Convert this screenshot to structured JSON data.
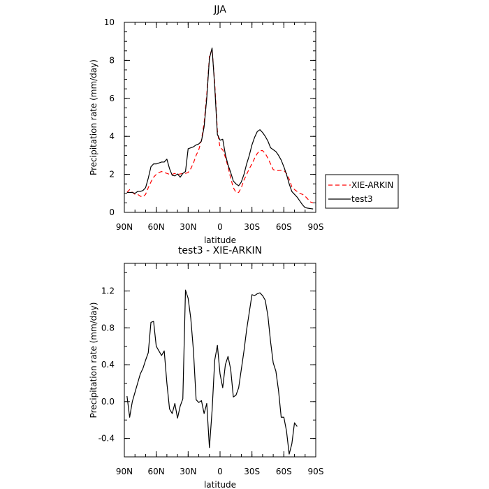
{
  "chart_data": [
    {
      "type": "line",
      "title": "JJA",
      "xlabel": "latitude",
      "ylabel": "Precipitation rate (mm/day)",
      "xlim": [
        -90,
        90
      ],
      "ylim": [
        0,
        10
      ],
      "xticks": [
        {
          "value": -90,
          "label": "90N"
        },
        {
          "value": -60,
          "label": "60N"
        },
        {
          "value": -30,
          "label": "30N"
        },
        {
          "value": 0,
          "label": "0"
        },
        {
          "value": 30,
          "label": "30S"
        },
        {
          "value": 60,
          "label": "60S"
        },
        {
          "value": 90,
          "label": "90S"
        }
      ],
      "yticks": [
        {
          "value": 0,
          "label": "0"
        },
        {
          "value": 2,
          "label": "2"
        },
        {
          "value": 4,
          "label": "4"
        },
        {
          "value": 6,
          "label": "6"
        },
        {
          "value": 8,
          "label": "8"
        },
        {
          "value": 10,
          "label": "10"
        }
      ],
      "legend_position": "right",
      "series": [
        {
          "name": "XIE-ARKIN",
          "color": "#ff0000",
          "dash": "dashed",
          "points": [
            [
              -87.5,
              1.05
            ],
            [
              -85,
              1.2
            ],
            [
              -82.5,
              1.05
            ],
            [
              -80,
              0.95
            ],
            [
              -77.5,
              0.95
            ],
            [
              -75,
              0.85
            ],
            [
              -72.5,
              0.82
            ],
            [
              -70,
              0.95
            ],
            [
              -67.5,
              1.3
            ],
            [
              -65,
              1.6
            ],
            [
              -62.5,
              1.85
            ],
            [
              -60,
              2.0
            ],
            [
              -57.5,
              2.1
            ],
            [
              -55,
              2.15
            ],
            [
              -52.5,
              2.1
            ],
            [
              -50,
              2.05
            ],
            [
              -47.5,
              2.0
            ],
            [
              -45,
              2.0
            ],
            [
              -42.5,
              2.05
            ],
            [
              -40,
              2.0
            ],
            [
              -37.5,
              2.02
            ],
            [
              -35,
              2.05
            ],
            [
              -32.5,
              2.05
            ],
            [
              -30,
              2.1
            ],
            [
              -27.5,
              2.3
            ],
            [
              -25,
              2.6
            ],
            [
              -22.5,
              3.0
            ],
            [
              -20,
              3.3
            ],
            [
              -17.5,
              3.8
            ],
            [
              -15,
              4.7
            ],
            [
              -12.5,
              6.2
            ],
            [
              -10,
              8.2
            ],
            [
              -7.5,
              8.6
            ],
            [
              -5,
              6.8
            ],
            [
              -2.5,
              4.3
            ],
            [
              0,
              3.4
            ],
            [
              2.5,
              3.3
            ],
            [
              5,
              2.9
            ],
            [
              7.5,
              2.4
            ],
            [
              10,
              1.8
            ],
            [
              12.5,
              1.3
            ],
            [
              15,
              1.05
            ],
            [
              17.5,
              1.05
            ],
            [
              20,
              1.3
            ],
            [
              22.5,
              1.7
            ],
            [
              25,
              2.0
            ],
            [
              27.5,
              2.3
            ],
            [
              30,
              2.55
            ],
            [
              32.5,
              2.85
            ],
            [
              35,
              3.1
            ],
            [
              37.5,
              3.25
            ],
            [
              40,
              3.25
            ],
            [
              42.5,
              3.1
            ],
            [
              45,
              2.85
            ],
            [
              47.5,
              2.55
            ],
            [
              50,
              2.25
            ],
            [
              52.5,
              2.2
            ],
            [
              55,
              2.2
            ],
            [
              57.5,
              2.22
            ],
            [
              60,
              2.2
            ],
            [
              62.5,
              2.05
            ],
            [
              65,
              1.75
            ],
            [
              67.5,
              1.35
            ],
            [
              70,
              1.2
            ],
            [
              72.5,
              1.1
            ],
            [
              75,
              1.0
            ],
            [
              77.5,
              0.95
            ],
            [
              80,
              0.85
            ],
            [
              82.5,
              0.7
            ],
            [
              85,
              0.55
            ],
            [
              87.5,
              0.5
            ]
          ]
        },
        {
          "name": "test3",
          "color": "#000000",
          "dash": "solid",
          "points": [
            [
              -87.5,
              1.05
            ],
            [
              -85,
              1.05
            ],
            [
              -82.5,
              1.05
            ],
            [
              -80,
              1.0
            ],
            [
              -77.5,
              1.1
            ],
            [
              -75,
              1.1
            ],
            [
              -72.5,
              1.15
            ],
            [
              -70,
              1.3
            ],
            [
              -67.5,
              1.8
            ],
            [
              -65,
              2.4
            ],
            [
              -62.5,
              2.55
            ],
            [
              -60,
              2.55
            ],
            [
              -57.5,
              2.6
            ],
            [
              -55,
              2.65
            ],
            [
              -52.5,
              2.65
            ],
            [
              -50,
              2.8
            ],
            [
              -47.5,
              2.3
            ],
            [
              -45,
              1.95
            ],
            [
              -42.5,
              1.92
            ],
            [
              -40,
              2.02
            ],
            [
              -37.5,
              1.85
            ],
            [
              -35,
              2.05
            ],
            [
              -32.5,
              2.15
            ],
            [
              -30,
              3.35
            ],
            [
              -27.5,
              3.4
            ],
            [
              -25,
              3.45
            ],
            [
              -22.5,
              3.55
            ],
            [
              -20,
              3.6
            ],
            [
              -17.5,
              3.75
            ],
            [
              -15,
              4.5
            ],
            [
              -12.5,
              6.0
            ],
            [
              -10,
              8.1
            ],
            [
              -7.5,
              8.65
            ],
            [
              -5,
              6.6
            ],
            [
              -2.5,
              4.1
            ],
            [
              0,
              3.8
            ],
            [
              2.5,
              3.85
            ],
            [
              5,
              3.05
            ],
            [
              7.5,
              2.5
            ],
            [
              10,
              2.1
            ],
            [
              12.5,
              1.65
            ],
            [
              15,
              1.5
            ],
            [
              17.5,
              1.4
            ],
            [
              20,
              1.6
            ],
            [
              22.5,
              2.0
            ],
            [
              25,
              2.55
            ],
            [
              27.5,
              3.0
            ],
            [
              30,
              3.55
            ],
            [
              32.5,
              3.95
            ],
            [
              35,
              4.25
            ],
            [
              37.5,
              4.35
            ],
            [
              40,
              4.2
            ],
            [
              42.5,
              4.0
            ],
            [
              45,
              3.75
            ],
            [
              47.5,
              3.4
            ],
            [
              50,
              3.3
            ],
            [
              52.5,
              3.2
            ],
            [
              55,
              3.0
            ],
            [
              57.5,
              2.75
            ],
            [
              60,
              2.4
            ],
            [
              62.5,
              2.0
            ],
            [
              65,
              1.5
            ],
            [
              67.5,
              1.1
            ],
            [
              70,
              0.95
            ],
            [
              72.5,
              0.8
            ],
            [
              75,
              0.6
            ],
            [
              77.5,
              0.4
            ],
            [
              80,
              0.25
            ],
            [
              82.5,
              0.22
            ],
            [
              85,
              0.2
            ],
            [
              87.5,
              0.18
            ]
          ]
        }
      ]
    },
    {
      "type": "line",
      "title": "test3 - XIE-ARKIN",
      "xlabel": "latitude",
      "ylabel": "Precipitation rate (mm/day)",
      "xlim": [
        -90,
        90
      ],
      "ylim": [
        -0.6,
        1.5
      ],
      "xticks": [
        {
          "value": -90,
          "label": "90N"
        },
        {
          "value": -60,
          "label": "60N"
        },
        {
          "value": -30,
          "label": "30N"
        },
        {
          "value": 0,
          "label": "0"
        },
        {
          "value": 30,
          "label": "30S"
        },
        {
          "value": 60,
          "label": "60S"
        },
        {
          "value": 90,
          "label": "90S"
        }
      ],
      "yticks": [
        {
          "value": -0.4,
          "label": "-0.4"
        },
        {
          "value": 0,
          "label": "0.0"
        },
        {
          "value": 0.4,
          "label": "0.4"
        },
        {
          "value": 0.8,
          "label": "0.8"
        },
        {
          "value": 1.2,
          "label": "1.2"
        }
      ],
      "series": [
        {
          "name": "",
          "color": "#000000",
          "dash": "solid",
          "points": [
            [
              -87.5,
              0.06
            ],
            [
              -85,
              -0.17
            ],
            [
              -82.5,
              0.0
            ],
            [
              -80,
              0.1
            ],
            [
              -77.5,
              0.2
            ],
            [
              -75,
              0.3
            ],
            [
              -72.5,
              0.36
            ],
            [
              -70,
              0.45
            ],
            [
              -67.5,
              0.53
            ],
            [
              -65,
              0.86
            ],
            [
              -62.5,
              0.87
            ],
            [
              -60,
              0.6
            ],
            [
              -57.5,
              0.55
            ],
            [
              -55,
              0.5
            ],
            [
              -52.5,
              0.55
            ],
            [
              -50,
              0.2
            ],
            [
              -47.5,
              -0.08
            ],
            [
              -45,
              -0.13
            ],
            [
              -42.5,
              -0.02
            ],
            [
              -40,
              -0.18
            ],
            [
              -37.5,
              -0.05
            ],
            [
              -35,
              0.03
            ],
            [
              -32.5,
              1.21
            ],
            [
              -30,
              1.12
            ],
            [
              -27.5,
              0.9
            ],
            [
              -25,
              0.55
            ],
            [
              -22.5,
              0.02
            ],
            [
              -20,
              -0.01
            ],
            [
              -17.5,
              0.01
            ],
            [
              -15,
              -0.13
            ],
            [
              -12.5,
              -0.02
            ],
            [
              -10,
              -0.5
            ],
            [
              -7.5,
              -0.1
            ],
            [
              -5,
              0.45
            ],
            [
              -2.5,
              0.61
            ],
            [
              0,
              0.3
            ],
            [
              2.5,
              0.15
            ],
            [
              5,
              0.4
            ],
            [
              7.5,
              0.49
            ],
            [
              10,
              0.35
            ],
            [
              12.5,
              0.05
            ],
            [
              15,
              0.07
            ],
            [
              17.5,
              0.15
            ],
            [
              20,
              0.35
            ],
            [
              22.5,
              0.55
            ],
            [
              25,
              0.78
            ],
            [
              27.5,
              0.97
            ],
            [
              30,
              1.16
            ],
            [
              32.5,
              1.15
            ],
            [
              35,
              1.17
            ],
            [
              37.5,
              1.18
            ],
            [
              40,
              1.15
            ],
            [
              42.5,
              1.1
            ],
            [
              45,
              0.93
            ],
            [
              47.5,
              0.65
            ],
            [
              50,
              0.42
            ],
            [
              52.5,
              0.33
            ],
            [
              55,
              0.12
            ],
            [
              57.5,
              -0.17
            ],
            [
              60,
              -0.17
            ],
            [
              62.5,
              -0.32
            ],
            [
              65,
              -0.57
            ],
            [
              67.5,
              -0.46
            ],
            [
              70,
              -0.23
            ],
            [
              72.5,
              -0.27
            ]
          ]
        }
      ]
    }
  ]
}
